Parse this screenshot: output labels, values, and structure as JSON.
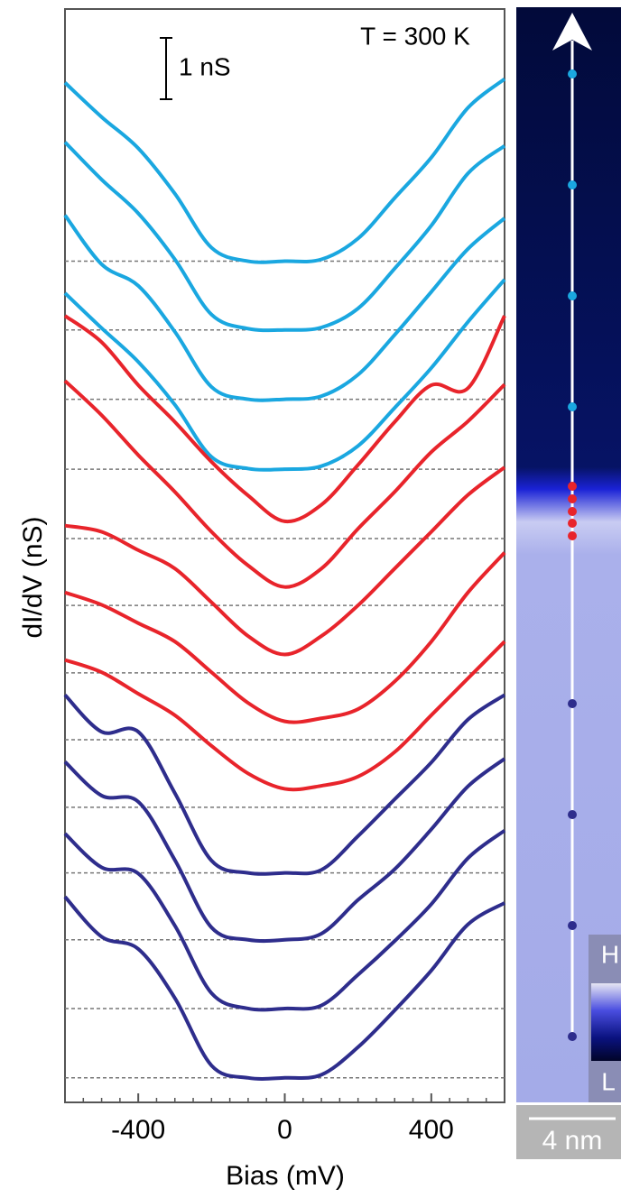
{
  "chart_data": {
    "type": "line",
    "title": "T = 300 K",
    "xlabel": "Bias (mV)",
    "ylabel": "dI/dV (nS)",
    "scale_bar": {
      "label": "1 nS",
      "value": 1
    },
    "x": [
      -600,
      -500,
      -400,
      -300,
      -200,
      -100,
      0,
      100,
      200,
      300,
      400,
      500,
      600
    ],
    "xlim": [
      -600,
      600
    ],
    "xticks": [
      -400,
      0,
      400
    ],
    "xminorticks": [
      -550,
      -500,
      -450,
      -350,
      -300,
      -250,
      -200,
      -150,
      -100,
      -50,
      50,
      100,
      150,
      200,
      250,
      300,
      350,
      450,
      500,
      550
    ],
    "ylim": [
      0,
      17.82
    ],
    "series": [
      {
        "color": "#1aa7e0",
        "offset": 13.71,
        "values": [
          2.91,
          2.35,
          1.84,
          1.1,
          0.22,
          0,
          0,
          0.03,
          0.37,
          1.03,
          1.69,
          2.5,
          2.97
        ]
      },
      {
        "color": "#1aa7e0",
        "offset": 12.59,
        "values": [
          3.06,
          2.45,
          1.9,
          1.15,
          0.25,
          0.02,
          0,
          0.04,
          0.35,
          1.0,
          1.7,
          2.55,
          3.0
        ]
      },
      {
        "color": "#1aa7e0",
        "offset": 11.46,
        "values": [
          3.0,
          2.2,
          1.85,
          1.1,
          0.2,
          0,
          0,
          0.05,
          0.4,
          1.05,
          1.75,
          2.45,
          2.95
        ]
      },
      {
        "color": "#1aa7e0",
        "offset": 10.32,
        "values": [
          2.87,
          2.3,
          1.75,
          1.05,
          0.2,
          0.01,
          0,
          0.05,
          0.38,
          1.0,
          1.65,
          2.4,
          3.09
        ]
      },
      {
        "color": "#e8242b",
        "offset": 9.19,
        "values": [
          3.63,
          3.2,
          2.5,
          1.9,
          1.25,
          0.7,
          0.28,
          0.55,
          1.2,
          1.9,
          2.5,
          2.45,
          3.63
        ]
      },
      {
        "color": "#e8242b",
        "offset": 8.1,
        "values": [
          3.66,
          3.1,
          2.45,
          1.85,
          1.2,
          0.65,
          0.3,
          0.6,
          1.25,
          1.85,
          2.5,
          3.0,
          3.6
        ]
      },
      {
        "color": "#e8242b",
        "offset": 7.0,
        "values": [
          2.4,
          2.3,
          2.0,
          1.7,
          1.15,
          0.6,
          0.3,
          0.6,
          1.1,
          1.7,
          2.3,
          2.9,
          3.35
        ]
      },
      {
        "color": "#e8242b",
        "offset": 5.91,
        "values": [
          2.4,
          2.2,
          1.9,
          1.6,
          1.1,
          0.6,
          0.3,
          0.35,
          0.5,
          0.95,
          1.6,
          2.4,
          3.05
        ]
      },
      {
        "color": "#e8242b",
        "offset": 4.81,
        "values": [
          2.4,
          2.2,
          1.85,
          1.5,
          1.0,
          0.55,
          0.3,
          0.35,
          0.5,
          0.9,
          1.5,
          2.1,
          2.7
        ]
      },
      {
        "color": "#2e2d8c",
        "offset": 3.74,
        "values": [
          2.9,
          2.3,
          2.3,
          1.3,
          0.2,
          0,
          0,
          0.05,
          0.6,
          1.2,
          1.8,
          2.5,
          2.9
        ]
      },
      {
        "color": "#2e2d8c",
        "offset": 2.65,
        "values": [
          2.9,
          2.35,
          2.25,
          1.3,
          0.2,
          0,
          0,
          0.1,
          0.65,
          1.15,
          1.8,
          2.5,
          2.95
        ]
      },
      {
        "color": "#2e2d8c",
        "offset": 1.53,
        "values": [
          2.85,
          2.3,
          2.2,
          1.35,
          0.25,
          0,
          0,
          0.05,
          0.55,
          1.1,
          1.7,
          2.45,
          2.9
        ]
      },
      {
        "color": "#2e2d8c",
        "offset": 0.4,
        "values": [
          2.95,
          2.3,
          2.1,
          1.3,
          0.2,
          0,
          0,
          0.05,
          0.5,
          1.1,
          1.75,
          2.5,
          2.85
        ]
      }
    ]
  },
  "image": {
    "scalebar_label": "4 nm",
    "colorbar_high": "H",
    "colorbar_low": "L"
  }
}
